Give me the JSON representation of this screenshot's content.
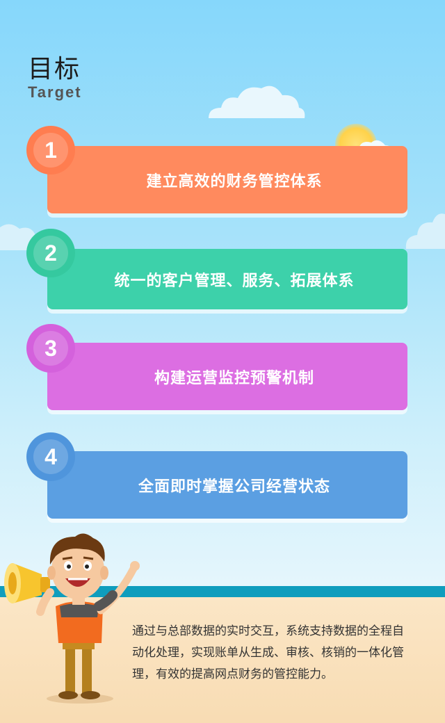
{
  "header": {
    "title": "目标",
    "subtitle": "Target"
  },
  "goals": [
    {
      "number": "1",
      "text": "建立高效的财务管控体系",
      "color": "#ff8a5e",
      "badge_color": "#ff7d50"
    },
    {
      "number": "2",
      "text": "统一的客户管理、服务、拓展体系",
      "color": "#3dd1aa",
      "badge_color": "#35c99f"
    },
    {
      "number": "3",
      "text": "构建运营监控预警机制",
      "color": "#dc6ee2",
      "badge_color": "#d461dc"
    },
    {
      "number": "4",
      "text": "全面即时掌握公司经营状态",
      "color": "#5b9fe2",
      "badge_color": "#4f95dc"
    }
  ],
  "description": "通过与总部数据的实时交互，系统支持数据的全程自动化处理，实现账单从生成、审核、核销的一体化管理，有效的提高网点财务的管控能力。",
  "icons": [
    "cloud-icon",
    "sun-icon",
    "mascot-icon",
    "megaphone-icon"
  ]
}
